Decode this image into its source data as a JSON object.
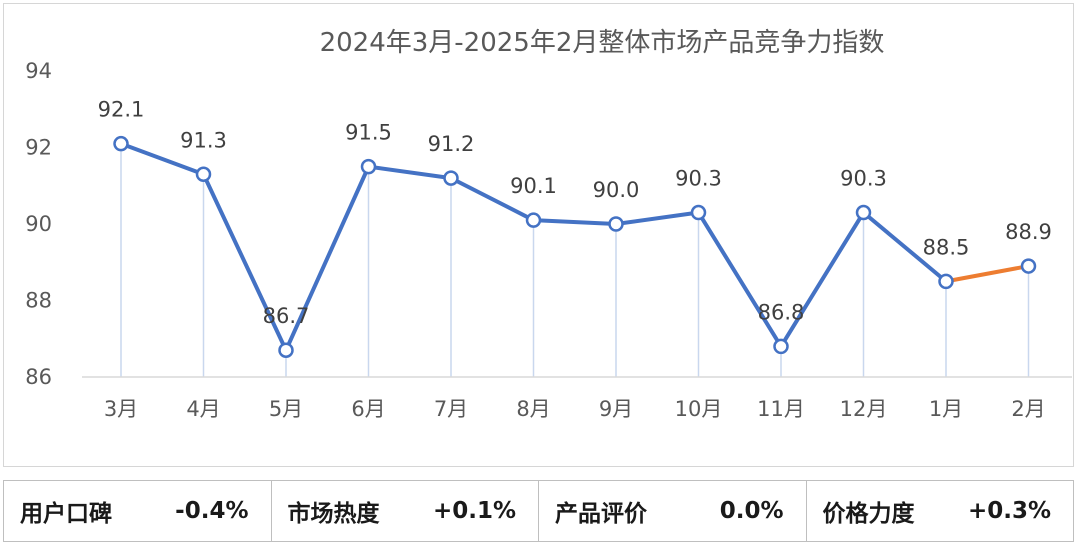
{
  "chart_data": {
    "type": "line",
    "title": "2024年3月-2025年2月整体市场产品竞争力指数",
    "categories": [
      "3月",
      "4月",
      "5月",
      "6月",
      "7月",
      "8月",
      "9月",
      "10月",
      "11月",
      "12月",
      "1月",
      "2月"
    ],
    "values": [
      92.1,
      91.3,
      86.7,
      91.5,
      91.2,
      90.1,
      90.0,
      90.3,
      86.8,
      90.3,
      88.5,
      88.9
    ],
    "value_labels": [
      "92.1",
      "91.3",
      "86.7",
      "91.5",
      "91.2",
      "90.1",
      "90.0",
      "90.3",
      "86.8",
      "90.3",
      "88.5",
      "88.9"
    ],
    "ylim": [
      86,
      94
    ],
    "yticks": [
      86,
      88,
      90,
      92,
      94
    ],
    "grid": false,
    "legend": "none",
    "colors": {
      "line": "#4472C4",
      "last_segment": "#ED7D31",
      "marker_fill": "#ffffff",
      "drop_line": "#c9d7ee"
    }
  },
  "metrics": [
    {
      "label": "用户口碑",
      "value": "-0.4%"
    },
    {
      "label": "市场热度",
      "value": "+0.1%"
    },
    {
      "label": "产品评价",
      "value": "0.0%"
    },
    {
      "label": "价格力度",
      "value": "+0.3%"
    }
  ]
}
